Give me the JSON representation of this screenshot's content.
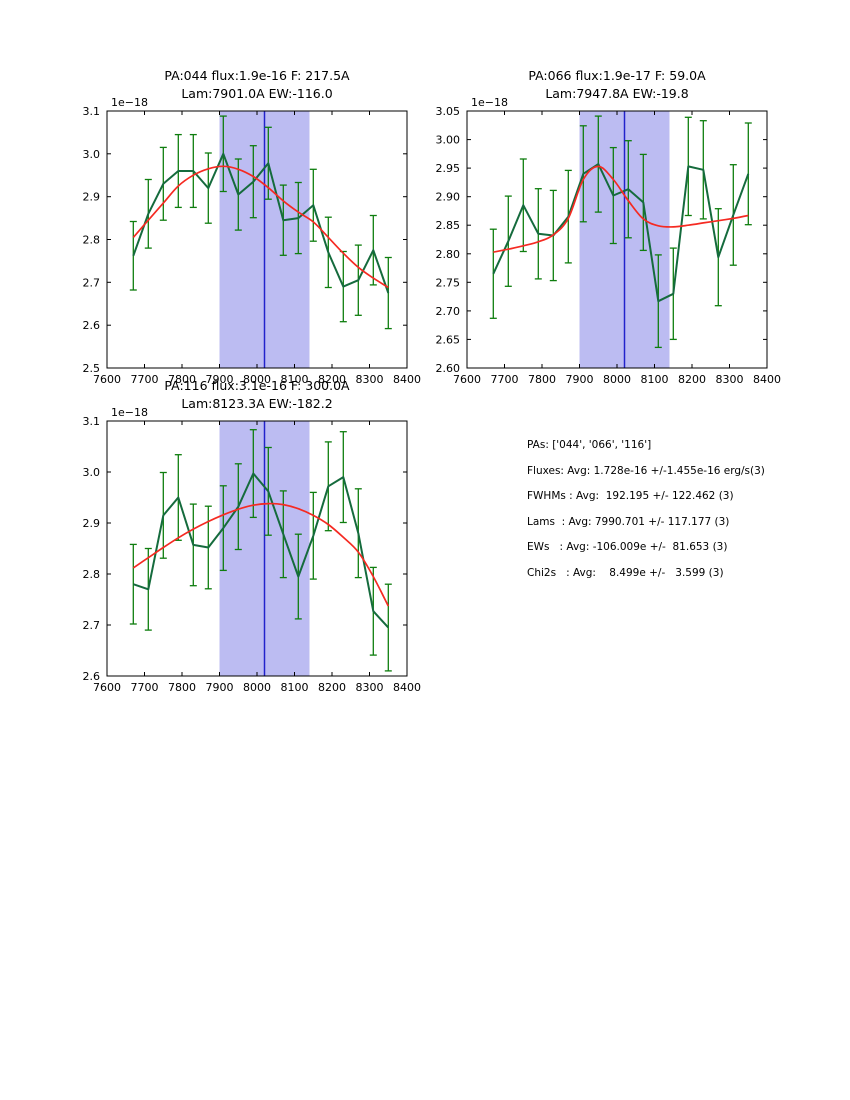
{
  "colors": {
    "background": "#ffffff",
    "axes": "#000000",
    "data_line": "#156b3d",
    "error_bar": "#0e7d0e",
    "fit_line": "#f52a22",
    "band": "#bcbcf2",
    "vline": "#2222cc"
  },
  "stats": {
    "lines": [
      "PAs: ['044', '066', '116']",
      "Fluxes: Avg: 1.728e-16 +/-1.455e-16 erg/s(3)",
      "FWHMs : Avg:  192.195 +/- 122.462 (3)",
      "Lams  : Avg: 7990.701 +/- 117.177 (3)",
      "EWs   : Avg: -106.009e +/-  81.653 (3)",
      "Chi2s   : Avg:    8.499e +/-   3.599 (3)"
    ]
  },
  "chart_data": [
    {
      "id": "pa044",
      "type": "line",
      "title_line1": "PA:044 flux:1.9e-16 F: 217.5A",
      "title_line2": "Lam:7901.0A EW:-116.0",
      "offset_label": "1e−18",
      "xlim": [
        7600,
        8400
      ],
      "ylim": [
        2.5,
        3.1
      ],
      "xticks": [
        7600,
        7700,
        7800,
        7900,
        8000,
        8100,
        8200,
        8300,
        8400
      ],
      "xtick_labels": [
        "7600",
        "7700",
        "7800",
        "7900",
        "8000",
        "8100",
        "8200",
        "8300",
        "8400"
      ],
      "yticks": [
        2.5,
        2.6,
        2.7,
        2.8,
        2.9,
        3.0,
        3.1
      ],
      "ytick_labels": [
        "2.5",
        "2.6",
        "2.7",
        "2.8",
        "2.9",
        "3.0",
        "3.1"
      ],
      "band": [
        7900,
        8140
      ],
      "vline": 8020,
      "x": [
        7670,
        7710,
        7750,
        7790,
        7830,
        7870,
        7910,
        7950,
        7990,
        8030,
        8070,
        8110,
        8150,
        8190,
        8230,
        8270,
        8310,
        8350
      ],
      "y": [
        2.762,
        2.86,
        2.93,
        2.96,
        2.96,
        2.92,
        3.0,
        2.905,
        2.935,
        2.978,
        2.845,
        2.85,
        2.88,
        2.77,
        2.69,
        2.705,
        2.775,
        2.675
      ],
      "yerr": [
        0.08,
        0.08,
        0.085,
        0.085,
        0.085,
        0.082,
        0.088,
        0.083,
        0.084,
        0.084,
        0.082,
        0.083,
        0.084,
        0.082,
        0.082,
        0.082,
        0.081,
        0.083
      ],
      "fit_y": [
        2.805,
        2.845,
        2.885,
        2.925,
        2.95,
        2.965,
        2.971,
        2.964,
        2.947,
        2.921,
        2.89,
        2.864,
        2.841,
        2.805,
        2.768,
        2.735,
        2.71,
        2.688
      ],
      "grid": false,
      "legend": null
    },
    {
      "id": "pa066",
      "type": "line",
      "title_line1": "PA:066 flux:1.9e-17 F: 59.0A",
      "title_line2": "Lam:7947.8A EW:-19.8",
      "offset_label": "1e−18",
      "xlim": [
        7600,
        8400
      ],
      "ylim": [
        2.6,
        3.05
      ],
      "xticks": [
        7600,
        7700,
        7800,
        7900,
        8000,
        8100,
        8200,
        8300,
        8400
      ],
      "xtick_labels": [
        "7600",
        "7700",
        "7800",
        "7900",
        "8000",
        "8100",
        "8200",
        "8300",
        "8400"
      ],
      "yticks": [
        2.6,
        2.65,
        2.7,
        2.75,
        2.8,
        2.85,
        2.9,
        2.95,
        3.0,
        3.05
      ],
      "ytick_labels": [
        "2.60",
        "2.65",
        "2.70",
        "2.75",
        "2.80",
        "2.85",
        "2.90",
        "2.95",
        "3.00",
        "3.05"
      ],
      "band": [
        7900,
        8140
      ],
      "vline": 8020,
      "x": [
        7670,
        7710,
        7750,
        7790,
        7830,
        7870,
        7910,
        7950,
        7990,
        8030,
        8070,
        8110,
        8150,
        8190,
        8230,
        8270,
        8310,
        8350
      ],
      "y": [
        2.765,
        2.822,
        2.885,
        2.835,
        2.832,
        2.865,
        2.94,
        2.957,
        2.902,
        2.913,
        2.89,
        2.717,
        2.73,
        2.953,
        2.947,
        2.794,
        2.868,
        2.94
      ],
      "yerr": [
        0.078,
        0.079,
        0.081,
        0.079,
        0.079,
        0.081,
        0.084,
        0.084,
        0.084,
        0.085,
        0.084,
        0.081,
        0.08,
        0.086,
        0.086,
        0.085,
        0.088,
        0.089
      ],
      "fit_y": [
        2.803,
        2.808,
        2.814,
        2.821,
        2.833,
        2.862,
        2.93,
        2.953,
        2.93,
        2.893,
        2.861,
        2.849,
        2.847,
        2.85,
        2.854,
        2.858,
        2.862,
        2.867
      ],
      "grid": false,
      "legend": null
    },
    {
      "id": "pa116",
      "type": "line",
      "title_line1": "PA:116 flux:3.1e-16 F: 300.0A",
      "title_line2": "Lam:8123.3A EW:-182.2",
      "offset_label": "1e−18",
      "xlim": [
        7600,
        8400
      ],
      "ylim": [
        2.6,
        3.1
      ],
      "xticks": [
        7600,
        7700,
        7800,
        7900,
        8000,
        8100,
        8200,
        8300,
        8400
      ],
      "xtick_labels": [
        "7600",
        "7700",
        "7800",
        "7900",
        "8000",
        "8100",
        "8200",
        "8300",
        "8400"
      ],
      "yticks": [
        2.6,
        2.7,
        2.8,
        2.9,
        3.0,
        3.1
      ],
      "ytick_labels": [
        "2.6",
        "2.7",
        "2.8",
        "2.9",
        "3.0",
        "3.1"
      ],
      "band": [
        7900,
        8140
      ],
      "vline": 8020,
      "x": [
        7670,
        7710,
        7750,
        7790,
        7830,
        7870,
        7910,
        7950,
        7990,
        8030,
        8070,
        8110,
        8150,
        8190,
        8230,
        8270,
        8310,
        8350
      ],
      "y": [
        2.78,
        2.77,
        2.915,
        2.95,
        2.857,
        2.852,
        2.89,
        2.932,
        2.997,
        2.962,
        2.878,
        2.795,
        2.875,
        2.972,
        2.99,
        2.88,
        2.727,
        2.695
      ],
      "yerr": [
        0.078,
        0.08,
        0.084,
        0.084,
        0.08,
        0.081,
        0.083,
        0.084,
        0.086,
        0.086,
        0.085,
        0.083,
        0.085,
        0.087,
        0.089,
        0.087,
        0.086,
        0.085
      ],
      "fit_y": [
        2.812,
        2.832,
        2.852,
        2.871,
        2.888,
        2.903,
        2.916,
        2.927,
        2.935,
        2.938,
        2.936,
        2.928,
        2.915,
        2.897,
        2.872,
        2.843,
        2.795,
        2.737
      ],
      "grid": false,
      "legend": null
    }
  ]
}
